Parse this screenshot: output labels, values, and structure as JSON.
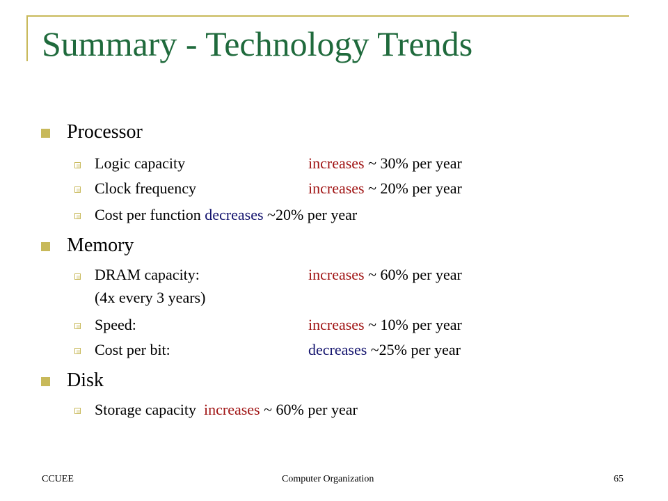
{
  "title": "Summary - Technology Trends",
  "sections": {
    "processor": {
      "label": "Processor",
      "items": [
        {
          "name": "Logic capacity",
          "trend": "increases",
          "rest": " ~ 30% per year"
        },
        {
          "name": "Clock frequency",
          "trend": "increases",
          "rest": " ~ 20% per year"
        },
        {
          "name": "Cost per function",
          "trend": "decreases",
          "rest": " ~20% per year"
        }
      ]
    },
    "memory": {
      "label": "Memory",
      "items": [
        {
          "name": "DRAM capacity:",
          "trend": "increases",
          "rest": " ~ 60% per year",
          "note": "(4x every 3 years)"
        },
        {
          "name": "Speed:",
          "trend": "increases",
          "rest": " ~ 10% per year"
        },
        {
          "name": "Cost  per bit:",
          "trend": "decreases",
          "rest": " ~25% per year"
        }
      ]
    },
    "disk": {
      "label": "Disk",
      "items": [
        {
          "name": "Storage capacity",
          "trend": "increases",
          "rest": " ~ 60% per year"
        }
      ]
    }
  },
  "footer": {
    "left": "CCUEE",
    "center": "Computer Organization",
    "page": "65"
  },
  "colors": {
    "title": "#1f6a3c",
    "accent": "#c8b95a",
    "increase": "#a01414",
    "decrease": "#14146e"
  }
}
